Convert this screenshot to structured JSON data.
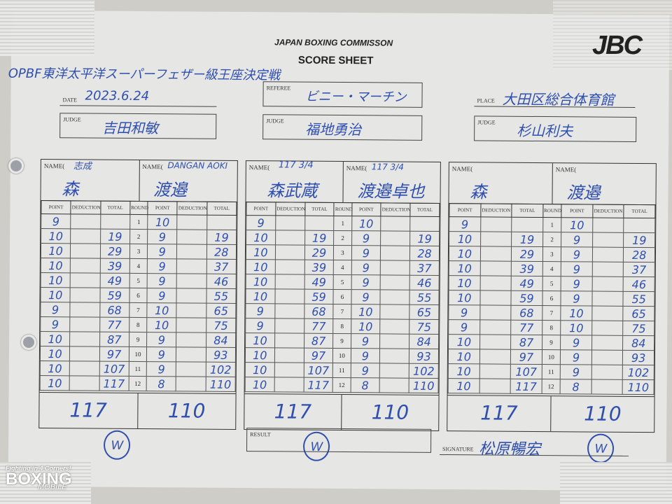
{
  "header": {
    "commission": "JAPAN BOXING COMMISSON",
    "sheet_title": "SCORE SHEET",
    "logo": "JBC",
    "bout_title": "OPBF東洋太平洋スーパーフェザー級王座決定戦"
  },
  "info": {
    "date_label": "DATE",
    "date": "2023.6.24",
    "referee_label": "REFEREE",
    "referee": "ビニー・マーチン",
    "place_label": "PLACE",
    "place": "大田区総合体育館",
    "judge_label": "JUDGE"
  },
  "columns": [
    "POINT",
    "DEDUCTION",
    "TOTAL",
    "ROUND",
    "POINT",
    "DEDUCTION",
    "TOTAL"
  ],
  "name_label": "NAME(",
  "judges": [
    {
      "judge": "吉田和敏",
      "red_note": "志成",
      "red": "森",
      "blue_note": "DANGAN AOKI",
      "blue": "渡邉",
      "red_final": "117",
      "blue_final": "110",
      "winner_mark": "W"
    },
    {
      "judge": "福地勇治",
      "red_note": "117 3/4",
      "red": "森武蔵",
      "blue_note": "117 3/4",
      "blue": "渡邉卓也",
      "red_final": "117",
      "blue_final": "110",
      "winner_mark": "W"
    },
    {
      "judge": "杉山利夫",
      "red_note": "",
      "red": "森",
      "blue_note": "",
      "blue": "渡邉",
      "red_final": "117",
      "blue_final": "110",
      "winner_mark": "W"
    }
  ],
  "rounds": [
    {
      "round": "1",
      "red_point": "9",
      "red_total": "",
      "blue_point": "10",
      "blue_total": ""
    },
    {
      "round": "2",
      "red_point": "10",
      "red_total": "19",
      "blue_point": "9",
      "blue_total": "19"
    },
    {
      "round": "3",
      "red_point": "10",
      "red_total": "29",
      "blue_point": "9",
      "blue_total": "28"
    },
    {
      "round": "4",
      "red_point": "10",
      "red_total": "39",
      "blue_point": "9",
      "blue_total": "37"
    },
    {
      "round": "5",
      "red_point": "10",
      "red_total": "49",
      "blue_point": "9",
      "blue_total": "46"
    },
    {
      "round": "6",
      "red_point": "10",
      "red_total": "59",
      "blue_point": "9",
      "blue_total": "55"
    },
    {
      "round": "7",
      "red_point": "9",
      "red_total": "68",
      "blue_point": "10",
      "blue_total": "65"
    },
    {
      "round": "8",
      "red_point": "9",
      "red_total": "77",
      "blue_point": "10",
      "blue_total": "75"
    },
    {
      "round": "9",
      "red_point": "10",
      "red_total": "87",
      "blue_point": "9",
      "blue_total": "84"
    },
    {
      "round": "10",
      "red_point": "10",
      "red_total": "97",
      "blue_point": "9",
      "blue_total": "93"
    },
    {
      "round": "11",
      "red_point": "10",
      "red_total": "107",
      "blue_point": "9",
      "blue_total": "102"
    },
    {
      "round": "12",
      "red_point": "10",
      "red_total": "117",
      "blue_point": "8",
      "blue_total": "110"
    }
  ],
  "footer": {
    "result_label": "RESULT",
    "signature_label": "SIGNATURE",
    "signature": "松原暢宏"
  },
  "watermark": {
    "tagline": "Fighting in 4 Corners!",
    "brand": "BOXING",
    "sub": "MOBILE"
  },
  "colors": {
    "ink": "#2f4fb0",
    "paper": "#e6e6e4"
  }
}
